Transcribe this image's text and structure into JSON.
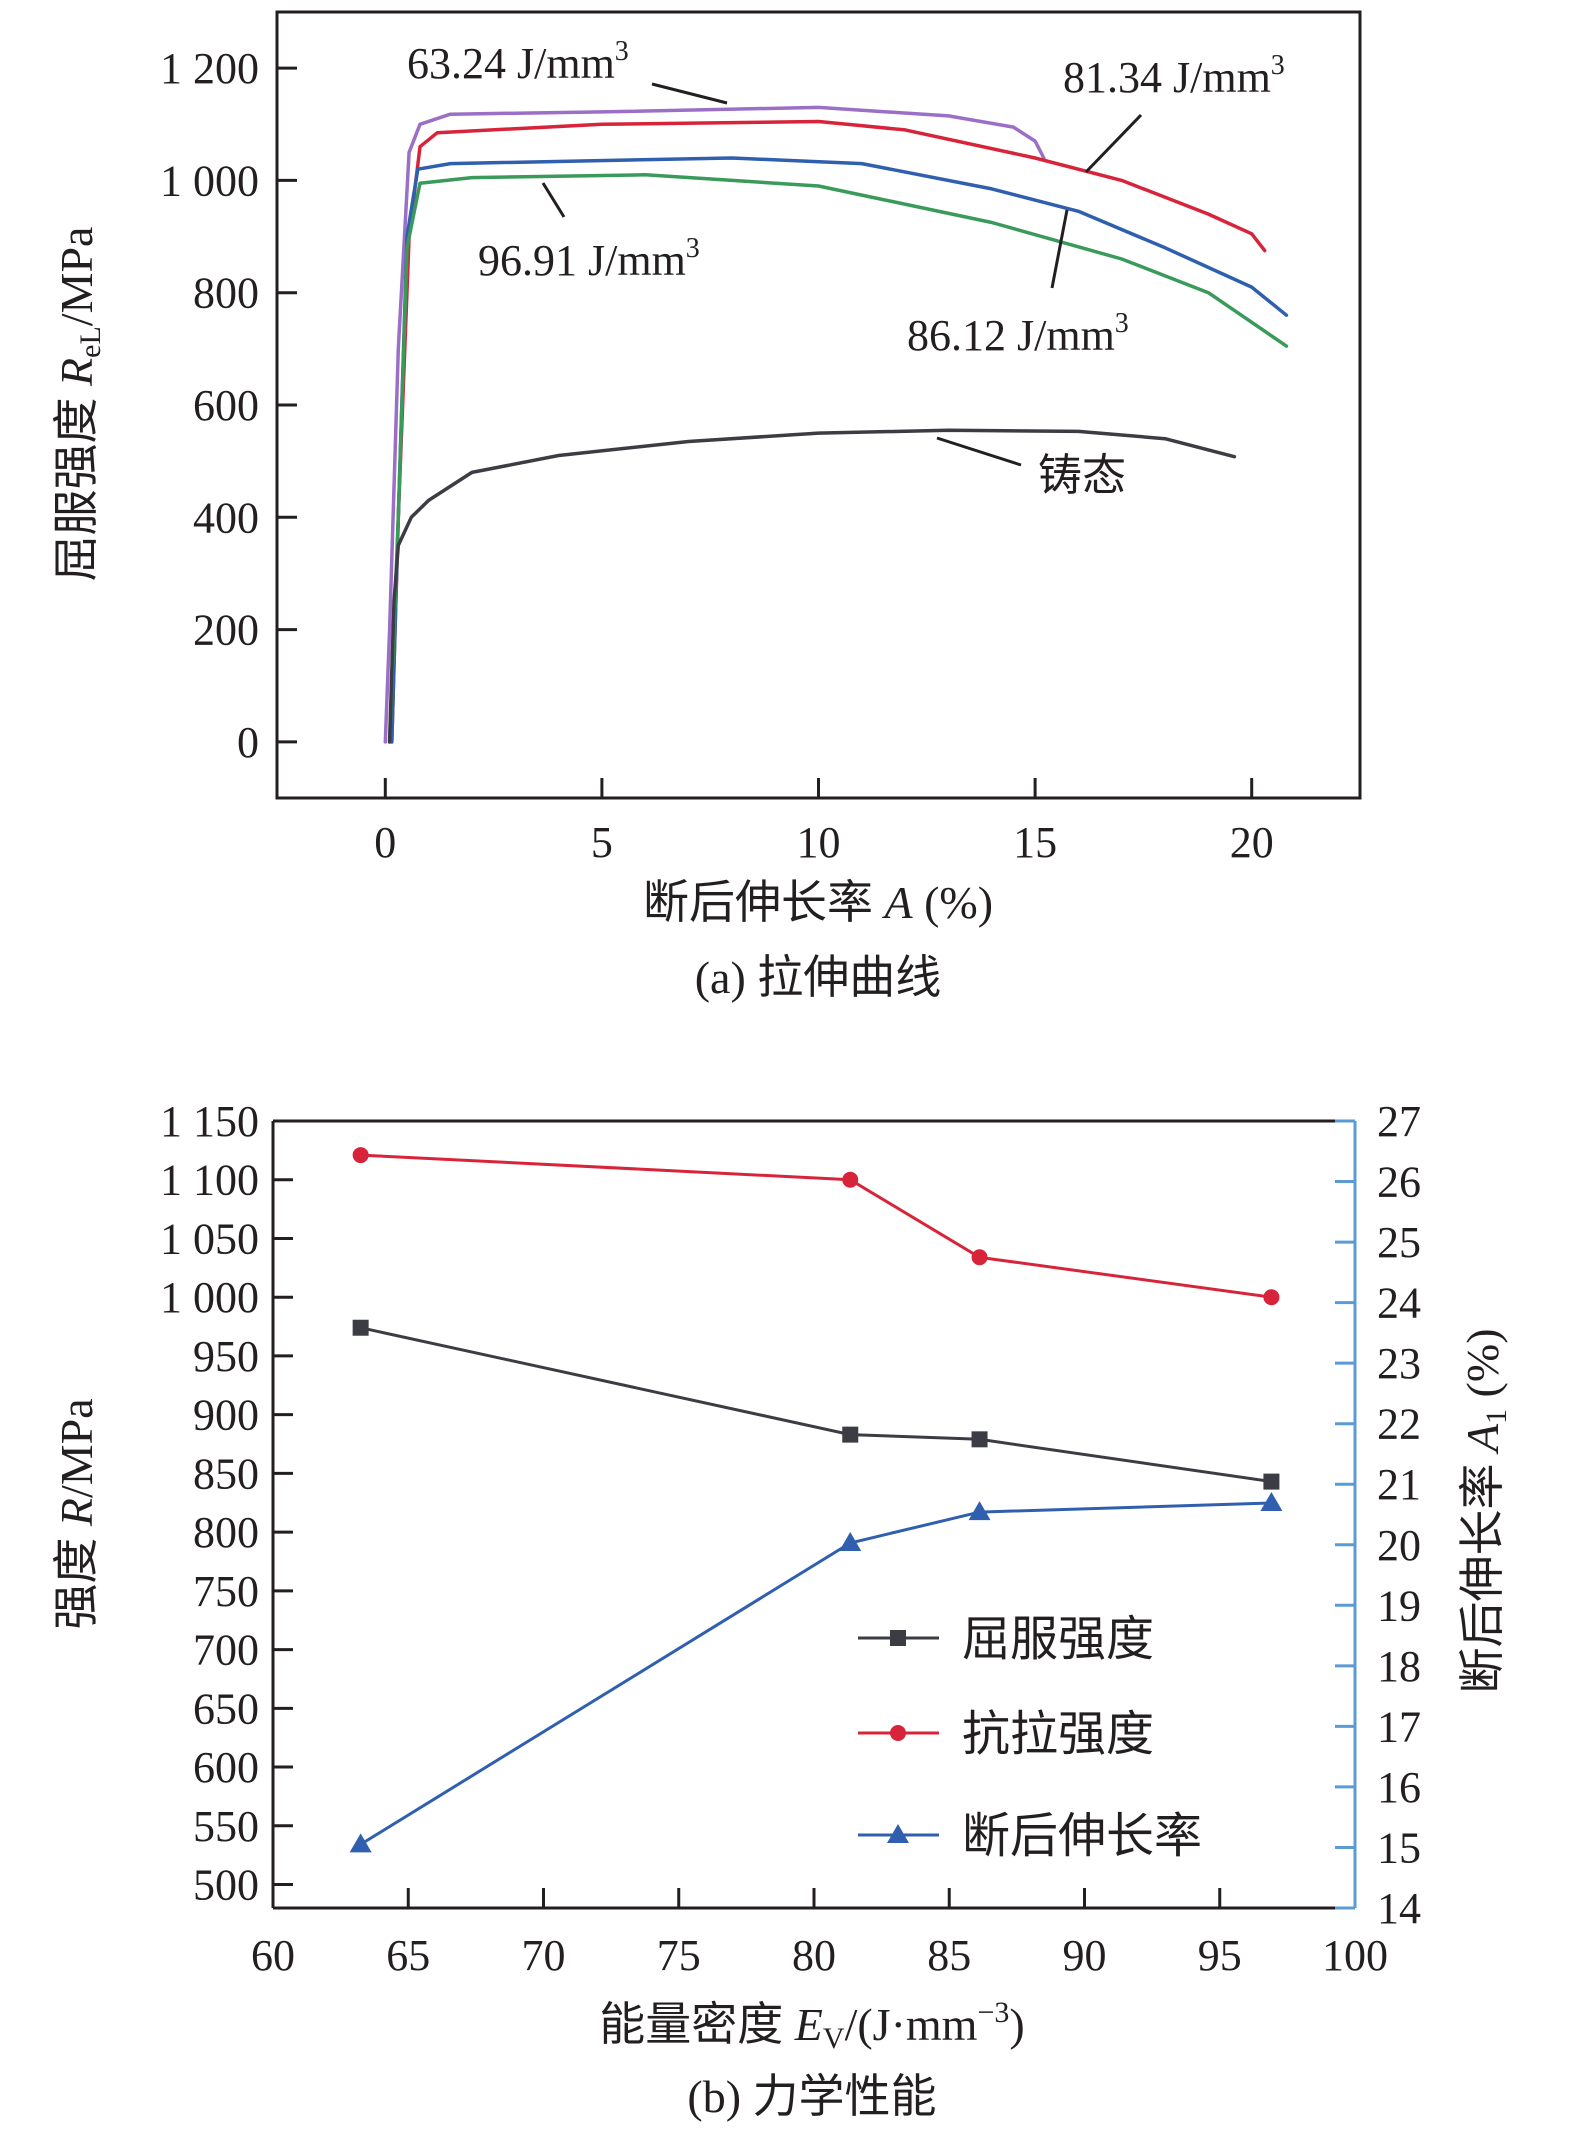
{
  "chart_data": [
    {
      "id": "a",
      "type": "line",
      "caption": "(a) 拉伸曲线",
      "xlabel_prefix": "断后伸长率 ",
      "xlabel_var": "A",
      "xlabel_suffix": " (%)",
      "ylabel_prefix": "屈服强度 ",
      "ylabel_var": "R",
      "ylabel_sub": "eL",
      "ylabel_suffix": "/MPa",
      "xlim": [
        -2.5,
        22.5
      ],
      "ylim": [
        -100,
        1300
      ],
      "xticks": [
        0,
        5,
        10,
        15,
        20
      ],
      "xtick_labels": [
        "0",
        "5",
        "10",
        "15",
        "20"
      ],
      "yticks": [
        0,
        200,
        400,
        600,
        800,
        1000,
        1200
      ],
      "ytick_labels": [
        "0",
        "200",
        "400",
        "600",
        "800",
        "1 000",
        "1 200"
      ],
      "grid": false,
      "series": [
        {
          "name": "63.24 J/mm3",
          "label_main": "63.24 J/mm",
          "label_sup": "3",
          "color": "#9b6fc6",
          "x": [
            0,
            0.1,
            0.3,
            0.55,
            0.8,
            1.5,
            5,
            10,
            13,
            14.5,
            15.0,
            15.2
          ],
          "y": [
            0,
            200,
            700,
            1050,
            1100,
            1118,
            1122,
            1130,
            1115,
            1095,
            1070,
            1040
          ]
        },
        {
          "name": "81.34 J/mm3",
          "label_main": "81.34 J/mm",
          "label_sup": "3",
          "color": "#d8243a",
          "x": [
            0.15,
            0.3,
            0.55,
            0.8,
            1.2,
            5,
            10,
            12,
            15,
            17,
            19,
            20,
            20.3
          ],
          "y": [
            0,
            400,
            900,
            1060,
            1085,
            1100,
            1105,
            1090,
            1040,
            1000,
            940,
            905,
            875
          ]
        },
        {
          "name": "86.12 J/mm3",
          "label_main": "86.12 J/mm",
          "label_sup": "3",
          "color": "#2f5fae",
          "x": [
            0.15,
            0.3,
            0.5,
            0.75,
            1.5,
            8,
            11,
            14,
            16,
            18,
            20,
            20.8
          ],
          "y": [
            0,
            400,
            900,
            1020,
            1030,
            1040,
            1030,
            985,
            945,
            880,
            810,
            760
          ]
        },
        {
          "name": "96.91 J/mm3",
          "label_main": "96.91 J/mm",
          "label_sup": "3",
          "color": "#3a9a5a",
          "x": [
            0.1,
            0.3,
            0.5,
            0.8,
            2,
            6,
            10,
            14,
            17,
            19,
            20.8
          ],
          "y": [
            0,
            400,
            880,
            995,
            1005,
            1010,
            990,
            925,
            860,
            800,
            705
          ]
        },
        {
          "name": "铸态",
          "label_main": "铸态",
          "label_sup": "",
          "color": "#3c3c44",
          "x": [
            0.1,
            0.2,
            0.3,
            0.6,
            1,
            2,
            4,
            7,
            10,
            13,
            16,
            18,
            19.6
          ],
          "y": [
            0,
            250,
            350,
            400,
            430,
            480,
            510,
            535,
            550,
            555,
            553,
            540,
            508
          ]
        }
      ]
    },
    {
      "id": "b",
      "type": "line",
      "caption": "(b) 力学性能",
      "xlabel_prefix": "能量密度 ",
      "xlabel_var": "E",
      "xlabel_sub": "V",
      "xlabel_suffix": "/(J·mm",
      "xlabel_sup": "−3",
      "xlabel_close": ")",
      "ylabel_prefix": "强度 ",
      "ylabel_var": "R",
      "ylabel_suffix": "/MPa",
      "y2label_prefix": "断后伸长率 ",
      "y2label_var": "A",
      "y2label_sub": "1",
      "y2label_suffix": " (%)",
      "xlim": [
        60,
        100
      ],
      "ylim": [
        480,
        1150
      ],
      "y2lim": [
        14,
        27
      ],
      "xticks": [
        60,
        65,
        70,
        75,
        80,
        85,
        90,
        95,
        100
      ],
      "xtick_labels": [
        "60",
        "65",
        "70",
        "75",
        "80",
        "85",
        "90",
        "95",
        "100"
      ],
      "yticks": [
        500,
        550,
        600,
        650,
        700,
        750,
        800,
        850,
        900,
        950,
        1000,
        1050,
        1100,
        1150
      ],
      "ytick_labels": [
        "500",
        "550",
        "600",
        "650",
        "700",
        "750",
        "800",
        "850",
        "900",
        "950",
        "1 000",
        "1 050",
        "1 100",
        "1 150"
      ],
      "y2ticks": [
        14,
        15,
        16,
        17,
        18,
        19,
        20,
        21,
        22,
        23,
        24,
        25,
        26,
        27
      ],
      "y2tick_labels": [
        "14",
        "15",
        "16",
        "17",
        "18",
        "19",
        "20",
        "21",
        "22",
        "23",
        "24",
        "25",
        "26",
        "27"
      ],
      "x": [
        63.24,
        81.34,
        86.12,
        96.91
      ],
      "grid": false,
      "legend_position": "center-right",
      "axis2_color": "#5b9bd5",
      "series": [
        {
          "name": "屈服强度",
          "axis": "left",
          "marker": "square",
          "color": "#3c3c44",
          "values": [
            974,
            883,
            879,
            843
          ]
        },
        {
          "name": "抗拉强度",
          "axis": "left",
          "marker": "circle",
          "color": "#d8243a",
          "values": [
            1121,
            1100,
            1034,
            1000
          ]
        },
        {
          "name": "断后伸长率",
          "axis": "right",
          "marker": "triangle",
          "color": "#2f5fae",
          "values": [
            15.05,
            20.03,
            20.54,
            20.69
          ]
        }
      ]
    }
  ]
}
